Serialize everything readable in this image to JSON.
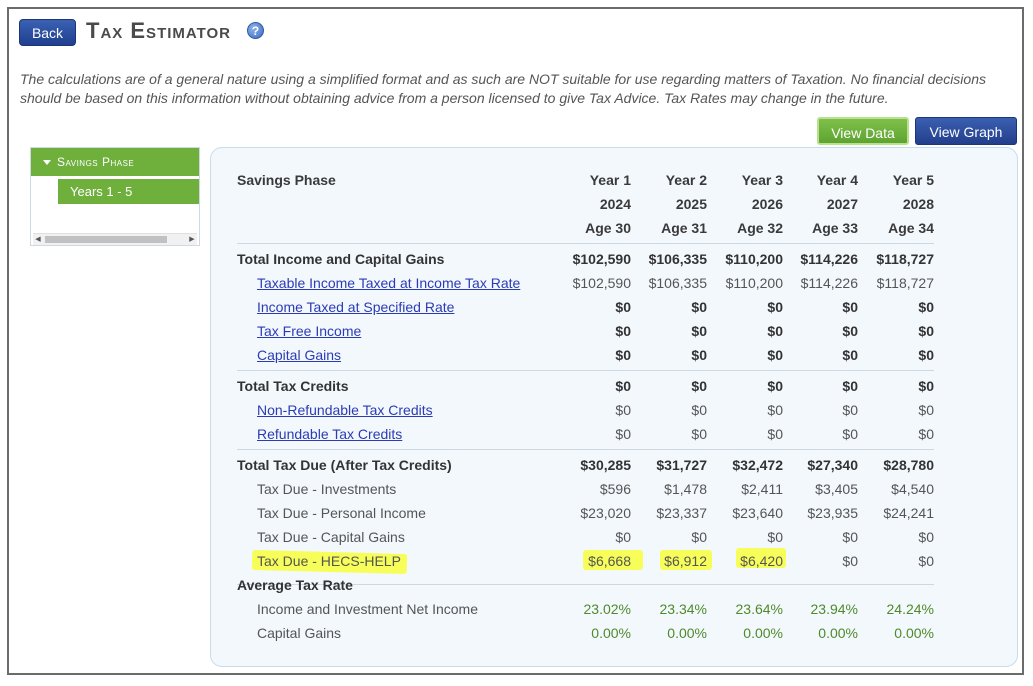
{
  "header": {
    "back_label": "Back",
    "title": "Tax Estimator",
    "help_icon": "?",
    "disclaimer": "The calculations are of a general nature using a simplified format and as such are NOT suitable for use regarding matters of Taxation. No financial decisions should be based on this information without obtaining advice from a person licensed to give Tax Advice. Tax Rates may change in the future."
  },
  "toolbar": {
    "view_data": "View Data",
    "view_graph": "View Graph"
  },
  "sidebar": {
    "phase": "Savings Phase",
    "item": "Years 1 - 5"
  },
  "table": {
    "title": "Savings Phase",
    "years": [
      {
        "label": "Year 1",
        "cal": "2024",
        "age": "Age 30"
      },
      {
        "label": "Year 2",
        "cal": "2025",
        "age": "Age 31"
      },
      {
        "label": "Year 3",
        "cal": "2026",
        "age": "Age 32"
      },
      {
        "label": "Year 4",
        "cal": "2027",
        "age": "Age 33"
      },
      {
        "label": "Year 5",
        "cal": "2028",
        "age": "Age 34"
      }
    ],
    "rows": [
      {
        "label": "Total Income and Capital Gains",
        "style": "total",
        "v": [
          "$102,590",
          "$106,335",
          "$110,200",
          "$114,226",
          "$118,727"
        ]
      },
      {
        "label": "Taxable Income Taxed at Income Tax Rate",
        "style": "link",
        "v": [
          "$102,590",
          "$106,335",
          "$110,200",
          "$114,226",
          "$118,727"
        ]
      },
      {
        "label": "Income Taxed at Specified Rate",
        "style": "link-bold",
        "v": [
          "$0",
          "$0",
          "$0",
          "$0",
          "$0"
        ]
      },
      {
        "label": "Tax Free Income",
        "style": "link-bold",
        "v": [
          "$0",
          "$0",
          "$0",
          "$0",
          "$0"
        ]
      },
      {
        "label": "Capital Gains",
        "style": "link-bold",
        "v": [
          "$0",
          "$0",
          "$0",
          "$0",
          "$0"
        ]
      },
      {
        "label": "Total Tax Credits",
        "style": "total",
        "v": [
          "$0",
          "$0",
          "$0",
          "$0",
          "$0"
        ]
      },
      {
        "label": "Non-Refundable Tax Credits",
        "style": "link",
        "v": [
          "$0",
          "$0",
          "$0",
          "$0",
          "$0"
        ]
      },
      {
        "label": "Refundable Tax Credits",
        "style": "link",
        "v": [
          "$0",
          "$0",
          "$0",
          "$0",
          "$0"
        ]
      },
      {
        "label": "Total Tax Due (After Tax Credits)",
        "style": "total",
        "v": [
          "$30,285",
          "$31,727",
          "$32,472",
          "$27,340",
          "$28,780"
        ]
      },
      {
        "label": "Tax Due - Investments",
        "style": "plain",
        "v": [
          "$596",
          "$1,478",
          "$2,411",
          "$3,405",
          "$4,540"
        ]
      },
      {
        "label": "Tax Due - Personal Income",
        "style": "plain",
        "v": [
          "$23,020",
          "$23,337",
          "$23,640",
          "$23,935",
          "$24,241"
        ]
      },
      {
        "label": "Tax Due - Capital Gains",
        "style": "plain",
        "v": [
          "$0",
          "$0",
          "$0",
          "$0",
          "$0"
        ]
      },
      {
        "label": "Tax Due - HECS-HELP",
        "style": "plain",
        "v": [
          "$6,668",
          "$6,912",
          "$6,420",
          "$0",
          "$0"
        ]
      },
      {
        "label": "Average Tax Rate",
        "style": "section",
        "v": [
          "",
          "",
          "",
          "",
          ""
        ]
      },
      {
        "label": "Income and Investment Net Income",
        "style": "green",
        "v": [
          "23.02%",
          "23.34%",
          "23.64%",
          "23.94%",
          "24.24%"
        ]
      },
      {
        "label": "Capital Gains",
        "style": "green",
        "v": [
          "0.00%",
          "0.00%",
          "0.00%",
          "0.00%",
          "0.00%"
        ]
      }
    ]
  }
}
